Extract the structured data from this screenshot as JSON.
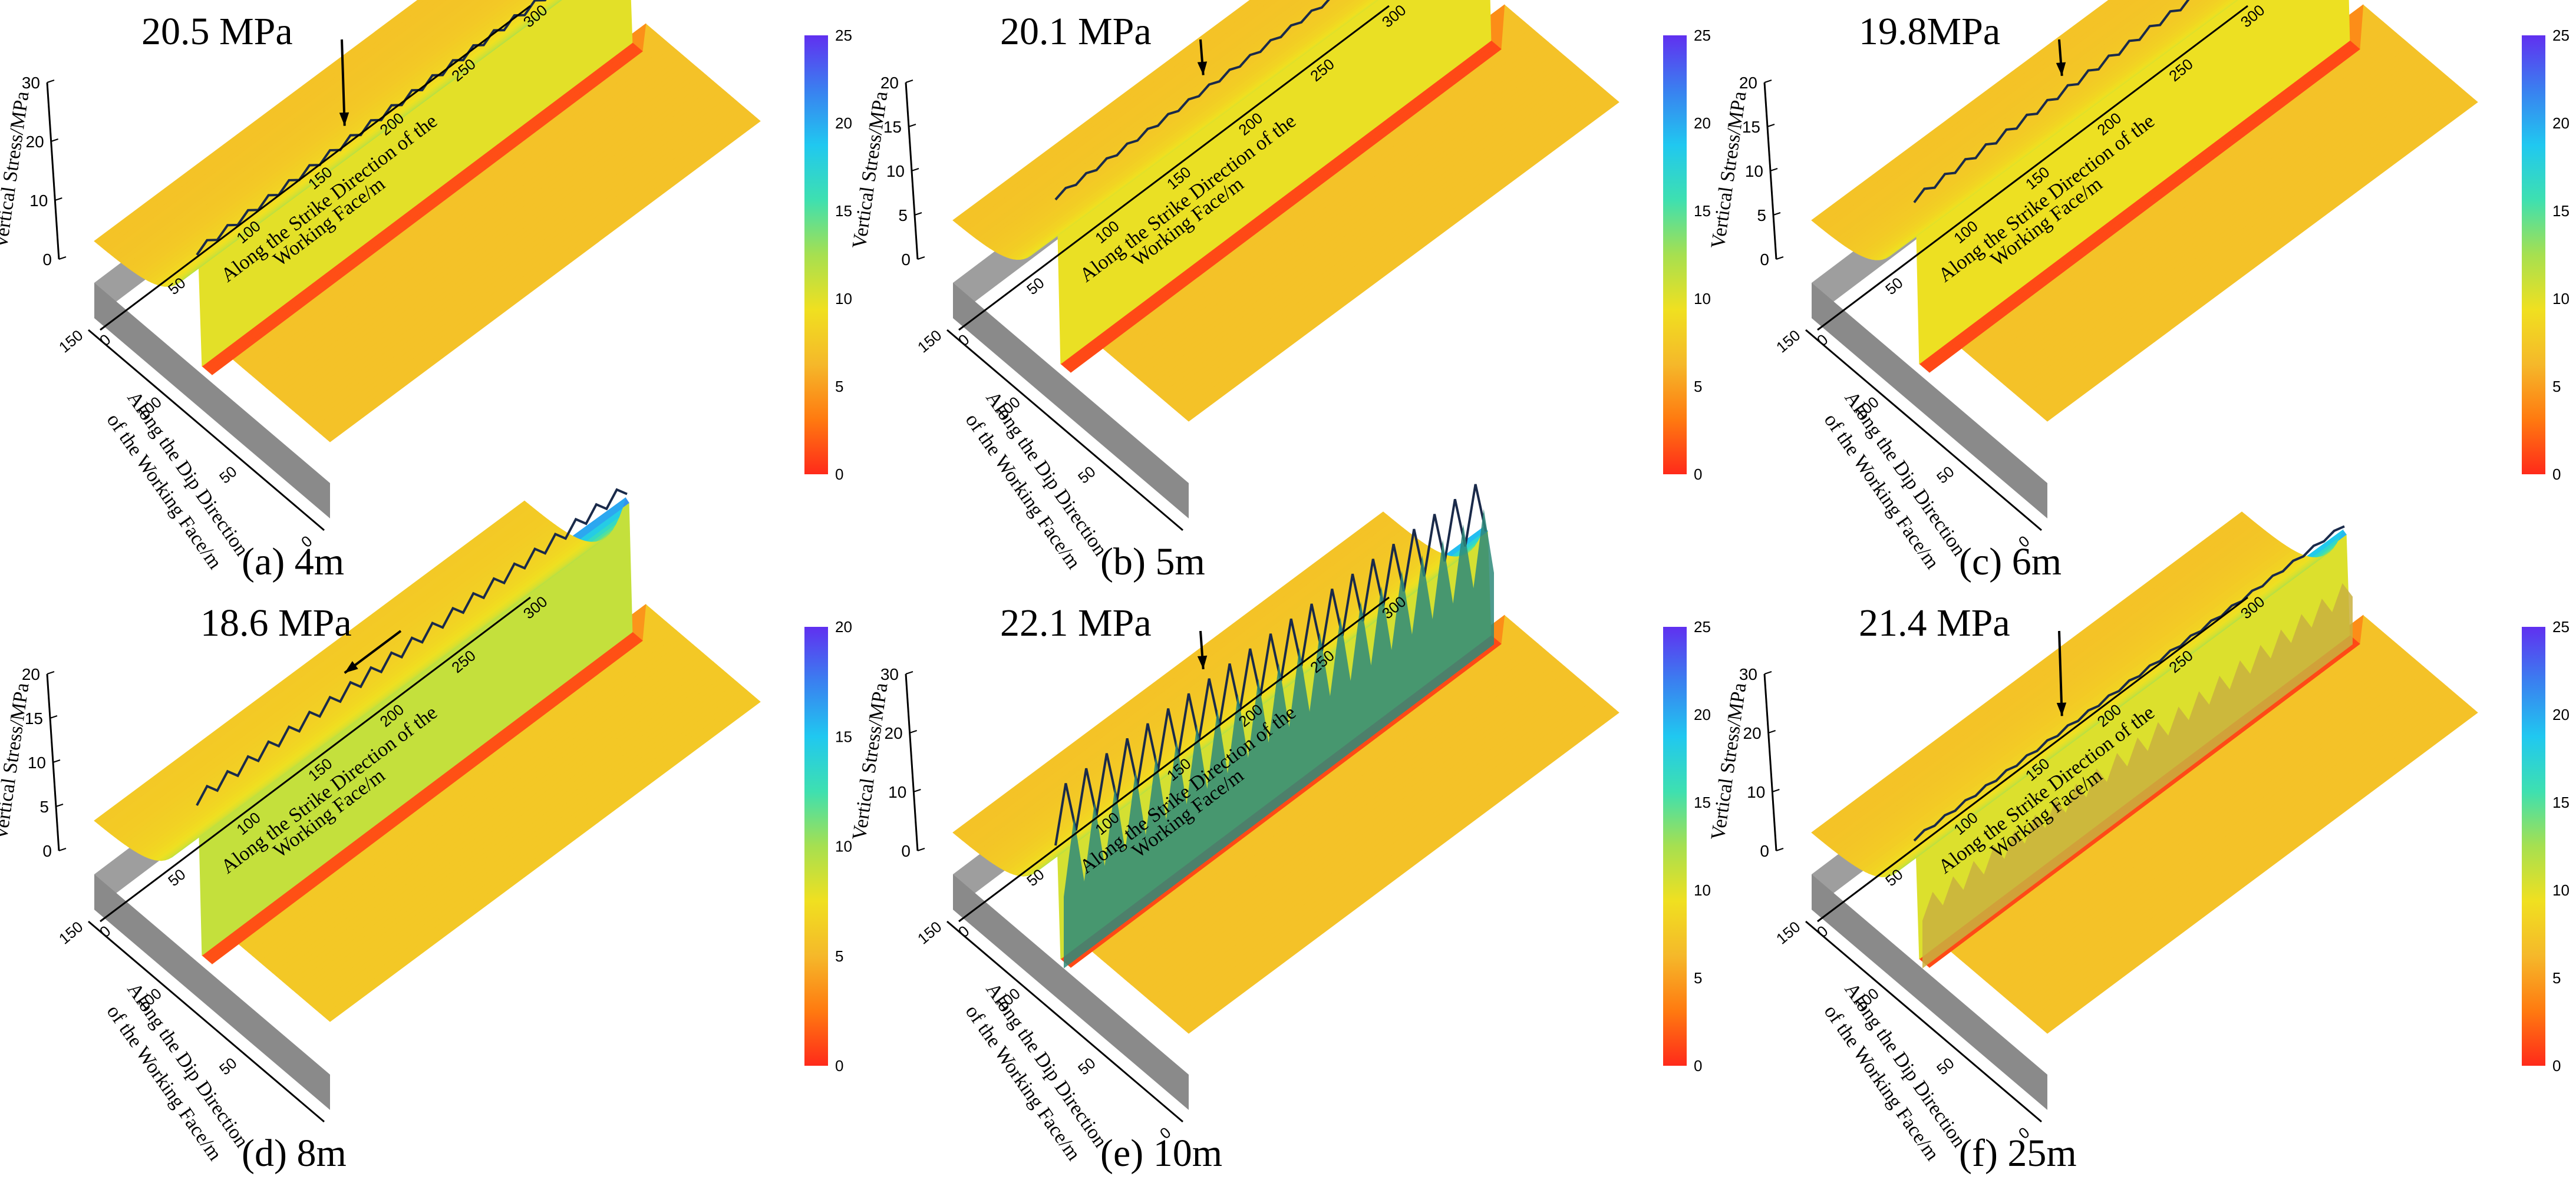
{
  "chart_data": [
    {
      "type": "surface3d",
      "panel_label": "(a) 4m",
      "peak_label": "20.5 MPa",
      "peak_value": 20.5,
      "gob_stress": 7,
      "edge_stress": 12,
      "far_stress": 7,
      "zlim": [
        0,
        30
      ],
      "z_ticks": [
        "0",
        "10",
        "20",
        "30"
      ],
      "dip_ticks": [
        "0",
        "50",
        "100",
        "150"
      ],
      "strike_ticks": [
        "0",
        "50",
        "100",
        "150",
        "200",
        "250",
        "300"
      ],
      "zlabel": "Vertical Stress/MPa",
      "dip_label_1": "Along the Dip Direction",
      "dip_label_2": "of the Working Face/m",
      "strike_label_1": "Along the Strike Direction of the",
      "strike_label_2": "Working Face/m",
      "colorbar_ticks": [
        "0",
        "5",
        "10",
        "15",
        "20",
        "25"
      ],
      "colorbar_max": 25,
      "ridge_amp": 0.05,
      "ridge2": 0
    },
    {
      "type": "surface3d",
      "panel_label": "(b) 5m",
      "peak_label": "20.1 MPa",
      "peak_value": 20.1,
      "gob_stress": 6,
      "edge_stress": 14,
      "far_stress": 7,
      "zlim": [
        0,
        20
      ],
      "z_ticks": [
        "0",
        "5",
        "10",
        "15",
        "20"
      ],
      "dip_ticks": [
        "50",
        "100",
        "150"
      ],
      "strike_ticks": [
        "0",
        "50",
        "100",
        "150",
        "200",
        "250",
        "300"
      ],
      "zlabel": "Vertical Stress/MPa",
      "dip_label_1": "Along the Dip Direction",
      "dip_label_2": "of the Working Face/m",
      "strike_label_1": "Along the Strike Direction of the",
      "strike_label_2": "Working Face/m",
      "colorbar_ticks": [
        "0",
        "5",
        "10",
        "15",
        "20",
        "25"
      ],
      "colorbar_max": 25,
      "ridge_amp": 0.02,
      "ridge2": 0
    },
    {
      "type": "surface3d",
      "panel_label": "(c) 6m",
      "peak_label": "19.8MPa",
      "peak_value": 19.8,
      "gob_stress": 6,
      "edge_stress": 14,
      "far_stress": 7,
      "zlim": [
        0,
        20
      ],
      "z_ticks": [
        "0",
        "5",
        "10",
        "15",
        "20"
      ],
      "dip_ticks": [
        "0",
        "50",
        "100",
        "150"
      ],
      "strike_ticks": [
        "0",
        "50",
        "100",
        "150",
        "200",
        "250",
        "300"
      ],
      "zlabel": "Vertical Stress/MPa",
      "dip_label_1": "Along the Dip Direction",
      "dip_label_2": "of the Working Face/m",
      "strike_label_1": "Along the Strike Direction of the",
      "strike_label_2": "Working Face/m",
      "colorbar_ticks": [
        "0",
        "5",
        "10",
        "15",
        "20",
        "25"
      ],
      "colorbar_max": 25,
      "ridge_amp": 0.03,
      "ridge2": 0
    },
    {
      "type": "surface3d",
      "panel_label": "(d) 8m",
      "peak_label": "18.6 MPa",
      "peak_value": 18.6,
      "gob_stress": 6,
      "edge_stress": 13,
      "far_stress": 6,
      "zlim": [
        0,
        20
      ],
      "z_ticks": [
        "0",
        "5",
        "10",
        "15",
        "20"
      ],
      "dip_ticks": [
        "50",
        "100",
        "150"
      ],
      "strike_ticks": [
        "0",
        "50",
        "100",
        "150",
        "200",
        "250",
        "300"
      ],
      "zlabel": "Vertical Stress/MPa",
      "dip_label_1": "Along the Dip Direction",
      "dip_label_2": "of the Working Face/m",
      "strike_label_1": "Along the Strike Direction of the",
      "strike_label_2": "Working Face/m",
      "colorbar_ticks": [
        "0",
        "5",
        "10",
        "15",
        "20"
      ],
      "colorbar_max": 20,
      "ridge_amp": 0.06,
      "ridge2": 0
    },
    {
      "type": "surface3d",
      "panel_label": "(e) 10m",
      "peak_label": "22.1 MPa",
      "peak_value": 22.1,
      "gob_stress": 6,
      "edge_stress": 14,
      "far_stress": 7,
      "zlim": [
        0,
        30
      ],
      "z_ticks": [
        "0",
        "10",
        "20",
        "30"
      ],
      "dip_ticks": [
        "0",
        "50",
        "100",
        "150"
      ],
      "strike_ticks": [
        "0",
        "50",
        "100",
        "150",
        "200",
        "250",
        "300"
      ],
      "zlabel": "Vertical Stress/MPa",
      "dip_label_1": "Along the Dip Direction",
      "dip_label_2": "of the Working Face/m",
      "strike_label_1": "Along the Strike Direction of the",
      "strike_label_2": "Working Face/m",
      "colorbar_ticks": [
        "0",
        "5",
        "10",
        "15",
        "20",
        "25"
      ],
      "colorbar_max": 25,
      "ridge_amp": 0.35,
      "ridge2": 1
    },
    {
      "type": "surface3d",
      "panel_label": "(f) 25m",
      "peak_label": "21.4 MPa",
      "peak_value": 21.4,
      "gob_stress": 6,
      "edge_stress": 9,
      "far_stress": 7,
      "zlim": [
        0,
        30
      ],
      "z_ticks": [
        "0",
        "10",
        "20",
        "30"
      ],
      "dip_ticks": [
        "0",
        "50",
        "100",
        "150"
      ],
      "strike_ticks": [
        "0",
        "50",
        "100",
        "150",
        "200",
        "250",
        "300"
      ],
      "zlabel": "Vertical Stress/MPa",
      "dip_label_1": "Along the Dip Direction",
      "dip_label_2": "of the Working Face/m",
      "strike_label_1": "Along the Strike Direction of the",
      "strike_label_2": "Working Face/m",
      "colorbar_ticks": [
        "0",
        "5",
        "10",
        "15",
        "20",
        "25"
      ],
      "colorbar_max": 25,
      "ridge_amp": 0.02,
      "ridge2": 2
    }
  ],
  "colors": {
    "colormap": [
      "#ff2a1a",
      "#ff7a10",
      "#f5b82a",
      "#f0e020",
      "#a6e050",
      "#3ee0b0",
      "#20c8f0",
      "#3a80f0",
      "#6030f0"
    ],
    "side_face": "#9e9e9e",
    "side_face_dark": "#8a8a8a",
    "arrow": "#000000"
  }
}
